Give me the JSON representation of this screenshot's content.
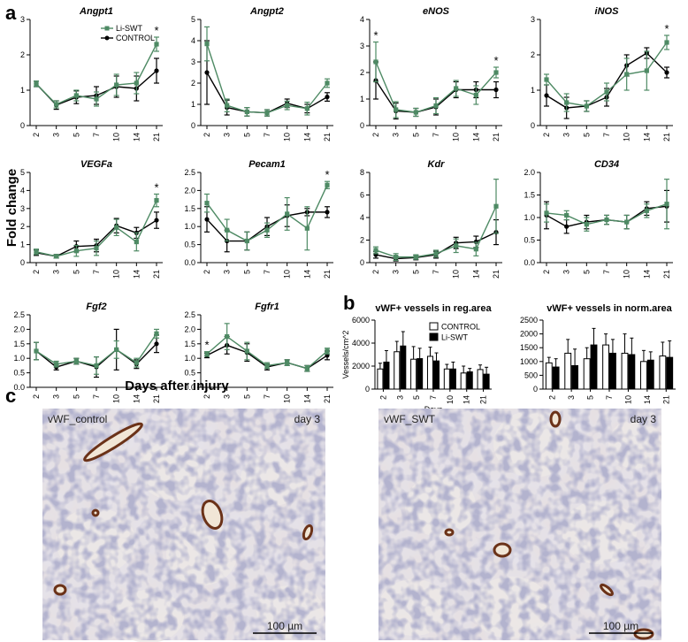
{
  "panels": {
    "a": "a",
    "b": "b",
    "c": "c"
  },
  "axis_labels": {
    "y_a": "Fold change",
    "x_a": "Days after injury"
  },
  "colors": {
    "swt": "#4e8a64",
    "control": "#000000"
  },
  "chart_data": [
    {
      "type": "line",
      "title": "Angpt1",
      "categories": [
        "2",
        "3",
        "5",
        "7",
        "10",
        "14",
        "21"
      ],
      "ylim": [
        0,
        3
      ],
      "yticks": [
        0,
        1,
        2,
        3
      ],
      "legend": [
        "Li-SWT",
        "CONTROL"
      ],
      "series": [
        {
          "name": "Li-SWT",
          "values": [
            1.18,
            0.6,
            0.85,
            0.75,
            1.15,
            1.2,
            2.3
          ],
          "err": [
            0.08,
            0.1,
            0.15,
            0.2,
            0.3,
            0.3,
            0.2
          ]
        },
        {
          "name": "CONTROL",
          "values": [
            1.18,
            0.58,
            0.8,
            0.85,
            1.1,
            1.05,
            1.55
          ],
          "err": [
            0.08,
            0.12,
            0.18,
            0.25,
            0.3,
            0.35,
            0.35
          ]
        }
      ],
      "stars": [
        "",
        "",
        "",
        "",
        "",
        "",
        "*"
      ]
    },
    {
      "type": "line",
      "title": "Angpt2",
      "categories": [
        "2",
        "3",
        "5",
        "7",
        "10",
        "14",
        "21"
      ],
      "ylim": [
        0,
        5
      ],
      "yticks": [
        0,
        1,
        2,
        3,
        4,
        5
      ],
      "series": [
        {
          "name": "Li-SWT",
          "values": [
            3.85,
            0.95,
            0.65,
            0.6,
            0.95,
            0.8,
            2.0
          ],
          "err": [
            0.8,
            0.3,
            0.2,
            0.15,
            0.2,
            0.3,
            0.2
          ]
        },
        {
          "name": "CONTROL",
          "values": [
            2.5,
            0.85,
            0.65,
            0.6,
            1.05,
            0.8,
            1.35
          ],
          "err": [
            1.5,
            0.35,
            0.2,
            0.15,
            0.2,
            0.2,
            0.2
          ]
        }
      ],
      "stars": [
        "",
        "",
        "",
        "",
        "",
        "",
        ""
      ]
    },
    {
      "type": "line",
      "title": "eNOS",
      "categories": [
        "2",
        "3",
        "5",
        "7",
        "10",
        "14",
        "21"
      ],
      "ylim": [
        0,
        4
      ],
      "yticks": [
        0,
        1,
        2,
        3,
        4
      ],
      "series": [
        {
          "name": "Li-SWT",
          "values": [
            2.4,
            0.6,
            0.5,
            0.75,
            1.4,
            1.15,
            2.0
          ],
          "err": [
            0.75,
            0.3,
            0.15,
            0.3,
            0.3,
            0.35,
            0.2
          ]
        },
        {
          "name": "CONTROL",
          "values": [
            1.7,
            0.55,
            0.5,
            0.7,
            1.35,
            1.35,
            1.35
          ],
          "err": [
            0.7,
            0.3,
            0.15,
            0.3,
            0.3,
            0.3,
            0.3
          ]
        }
      ],
      "stars": [
        "*",
        "",
        "",
        "",
        "",
        "",
        "*"
      ]
    },
    {
      "type": "line",
      "title": "iNOS",
      "categories": [
        "2",
        "3",
        "5",
        "7",
        "10",
        "14",
        "21"
      ],
      "ylim": [
        0,
        3
      ],
      "yticks": [
        0,
        1,
        2,
        3
      ],
      "series": [
        {
          "name": "Li-SWT",
          "values": [
            1.3,
            0.65,
            0.55,
            0.95,
            1.45,
            1.55,
            2.35
          ],
          "err": [
            0.15,
            0.25,
            0.15,
            0.25,
            0.45,
            0.55,
            0.2
          ]
        },
        {
          "name": "CONTROL",
          "values": [
            0.85,
            0.5,
            0.55,
            0.8,
            1.7,
            2.05,
            1.5
          ],
          "err": [
            0.3,
            0.3,
            0.15,
            0.25,
            0.3,
            0.15,
            0.15
          ]
        }
      ],
      "stars": [
        "",
        "",
        "",
        "",
        "",
        "",
        "*"
      ]
    },
    {
      "type": "line",
      "title": "VEGFa",
      "categories": [
        "2",
        "3",
        "5",
        "7",
        "10",
        "14",
        "21"
      ],
      "ylim": [
        0,
        5
      ],
      "yticks": [
        0,
        1,
        2,
        3,
        4,
        5
      ],
      "series": [
        {
          "name": "Li-SWT",
          "values": [
            0.6,
            0.35,
            0.65,
            0.8,
            1.95,
            1.15,
            3.45
          ],
          "err": [
            0.15,
            0.1,
            0.3,
            0.4,
            0.45,
            0.5,
            0.35
          ]
        },
        {
          "name": "CONTROL",
          "values": [
            0.55,
            0.35,
            0.9,
            0.95,
            2.05,
            1.65,
            2.35
          ],
          "err": [
            0.15,
            0.1,
            0.3,
            0.35,
            0.4,
            0.3,
            0.45
          ]
        }
      ],
      "stars": [
        "",
        "",
        "",
        "",
        "",
        "",
        "*"
      ]
    },
    {
      "type": "line",
      "title": "Pecam1",
      "categories": [
        "2",
        "3",
        "5",
        "7",
        "10",
        "14",
        "21"
      ],
      "ylim": [
        0,
        2.5
      ],
      "yticks": [
        0,
        0.5,
        1.0,
        1.5,
        2.0,
        2.5
      ],
      "series": [
        {
          "name": "Li-SWT",
          "values": [
            1.65,
            0.9,
            0.6,
            0.9,
            1.35,
            0.95,
            2.15
          ],
          "err": [
            0.25,
            0.3,
            0.25,
            0.2,
            0.45,
            0.6,
            0.1
          ]
        },
        {
          "name": "CONTROL",
          "values": [
            1.2,
            0.6,
            0.6,
            1.0,
            1.3,
            1.4,
            1.4
          ],
          "err": [
            0.35,
            0.3,
            0.25,
            0.25,
            0.3,
            0.1,
            0.15
          ]
        }
      ],
      "stars": [
        "",
        "",
        "",
        "",
        "",
        "",
        "*"
      ]
    },
    {
      "type": "line",
      "title": "Kdr",
      "categories": [
        "2",
        "3",
        "5",
        "7",
        "10",
        "14",
        "21"
      ],
      "ylim": [
        0,
        8
      ],
      "yticks": [
        0,
        2,
        4,
        6,
        8
      ],
      "series": [
        {
          "name": "Li-SWT",
          "values": [
            1.1,
            0.5,
            0.5,
            0.8,
            1.5,
            1.2,
            5.0
          ],
          "err": [
            0.3,
            0.3,
            0.2,
            0.3,
            0.6,
            0.6,
            2.4
          ]
        },
        {
          "name": "CONTROL",
          "values": [
            0.7,
            0.35,
            0.45,
            0.7,
            1.75,
            1.85,
            2.7
          ],
          "err": [
            0.3,
            0.2,
            0.2,
            0.3,
            0.5,
            0.5,
            1.1
          ]
        }
      ],
      "stars": [
        "",
        "",
        "",
        "",
        "",
        "",
        ""
      ]
    },
    {
      "type": "line",
      "title": "CD34",
      "categories": [
        "2",
        "3",
        "5",
        "7",
        "10",
        "14",
        "21"
      ],
      "ylim": [
        0,
        2.0
      ],
      "yticks": [
        0,
        0.5,
        1.0,
        1.5,
        2.0
      ],
      "series": [
        {
          "name": "Li-SWT",
          "values": [
            1.1,
            1.05,
            0.85,
            0.95,
            0.9,
            1.15,
            1.3
          ],
          "err": [
            0.2,
            0.1,
            0.15,
            0.1,
            0.15,
            0.15,
            0.55
          ]
        },
        {
          "name": "CONTROL",
          "values": [
            1.05,
            0.8,
            0.9,
            0.95,
            0.9,
            1.2,
            1.25
          ],
          "err": [
            0.3,
            0.15,
            0.15,
            0.1,
            0.15,
            0.15,
            0.35
          ]
        }
      ],
      "stars": [
        "",
        "",
        "",
        "",
        "",
        "",
        ""
      ]
    },
    {
      "type": "line",
      "title": "Fgf2",
      "categories": [
        "2",
        "3",
        "5",
        "7",
        "10",
        "14",
        "21"
      ],
      "ylim": [
        0,
        2.5
      ],
      "yticks": [
        0,
        0.5,
        1.0,
        1.5,
        2.0,
        2.5
      ],
      "series": [
        {
          "name": "Li-SWT",
          "values": [
            1.25,
            0.8,
            0.9,
            0.75,
            1.3,
            0.85,
            1.85
          ],
          "err": [
            0.3,
            0.1,
            0.1,
            0.3,
            0.3,
            0.15,
            0.15
          ]
        },
        {
          "name": "CONTROL",
          "values": [
            1.25,
            0.7,
            0.9,
            0.7,
            1.3,
            0.8,
            1.5
          ],
          "err": [
            0.3,
            0.1,
            0.1,
            0.35,
            0.7,
            0.15,
            0.3
          ]
        }
      ],
      "stars": [
        "",
        "",
        "",
        "",
        "",
        "",
        ""
      ]
    },
    {
      "type": "line",
      "title": "Fgfr1",
      "categories": [
        "2",
        "3",
        "5",
        "7",
        "10",
        "14",
        "21"
      ],
      "ylim": [
        0,
        2.5
      ],
      "yticks": [
        0,
        0.5,
        1.0,
        1.5,
        2.0,
        2.5
      ],
      "series": [
        {
          "name": "Li-SWT",
          "values": [
            1.15,
            1.75,
            1.25,
            0.75,
            0.85,
            0.65,
            1.25
          ],
          "err": [
            0.08,
            0.45,
            0.3,
            0.1,
            0.1,
            0.1,
            0.1
          ]
        },
        {
          "name": "CONTROL",
          "values": [
            1.1,
            1.45,
            1.2,
            0.7,
            0.85,
            0.65,
            1.1
          ],
          "err": [
            0.08,
            0.3,
            0.3,
            0.1,
            0.1,
            0.1,
            0.15
          ]
        }
      ],
      "stars": [
        "*",
        "",
        "",
        "",
        "",
        "",
        ""
      ]
    },
    {
      "type": "bar",
      "title": "vWF+ vessels in reg.area",
      "categories": [
        "2",
        "3",
        "5",
        "7",
        "10",
        "14",
        "21"
      ],
      "ylim": [
        0,
        6000
      ],
      "yticks": [
        0,
        2000,
        4000,
        6000
      ],
      "ylabel": "Vessels/cm^2",
      "xlabel": "Days",
      "legend": [
        "CONTROL",
        "Li-SWT"
      ],
      "series": [
        {
          "name": "CONTROL",
          "values": [
            1750,
            3250,
            2600,
            2850,
            1750,
            1400,
            1700
          ],
          "err": [
            500,
            900,
            1100,
            800,
            400,
            600,
            400
          ]
        },
        {
          "name": "Li-SWT",
          "values": [
            2350,
            3750,
            2650,
            2450,
            1750,
            1500,
            1300
          ],
          "err": [
            1000,
            1250,
            900,
            700,
            600,
            300,
            600
          ]
        }
      ]
    },
    {
      "type": "bar",
      "title": "vWF+ vessels in norm.area",
      "categories": [
        "2",
        "3",
        "5",
        "7",
        "10",
        "14",
        "21"
      ],
      "ylim": [
        0,
        2500
      ],
      "yticks": [
        0,
        500,
        1000,
        1500,
        2000,
        2500
      ],
      "series": [
        {
          "name": "CONTROL",
          "values": [
            950,
            1300,
            1100,
            1600,
            1300,
            1000,
            1200
          ],
          "err": [
            200,
            500,
            400,
            400,
            700,
            400,
            500
          ]
        },
        {
          "name": "Li-SWT",
          "values": [
            800,
            850,
            1600,
            1300,
            1250,
            1050,
            1150
          ],
          "err": [
            300,
            600,
            600,
            500,
            600,
            300,
            600
          ]
        }
      ]
    }
  ],
  "micrographs": [
    {
      "label": "vWF_control",
      "day": "day 3",
      "scale": "100 µm"
    },
    {
      "label": "vWF_SWT",
      "day": "day 3",
      "scale": "100 µm"
    }
  ]
}
